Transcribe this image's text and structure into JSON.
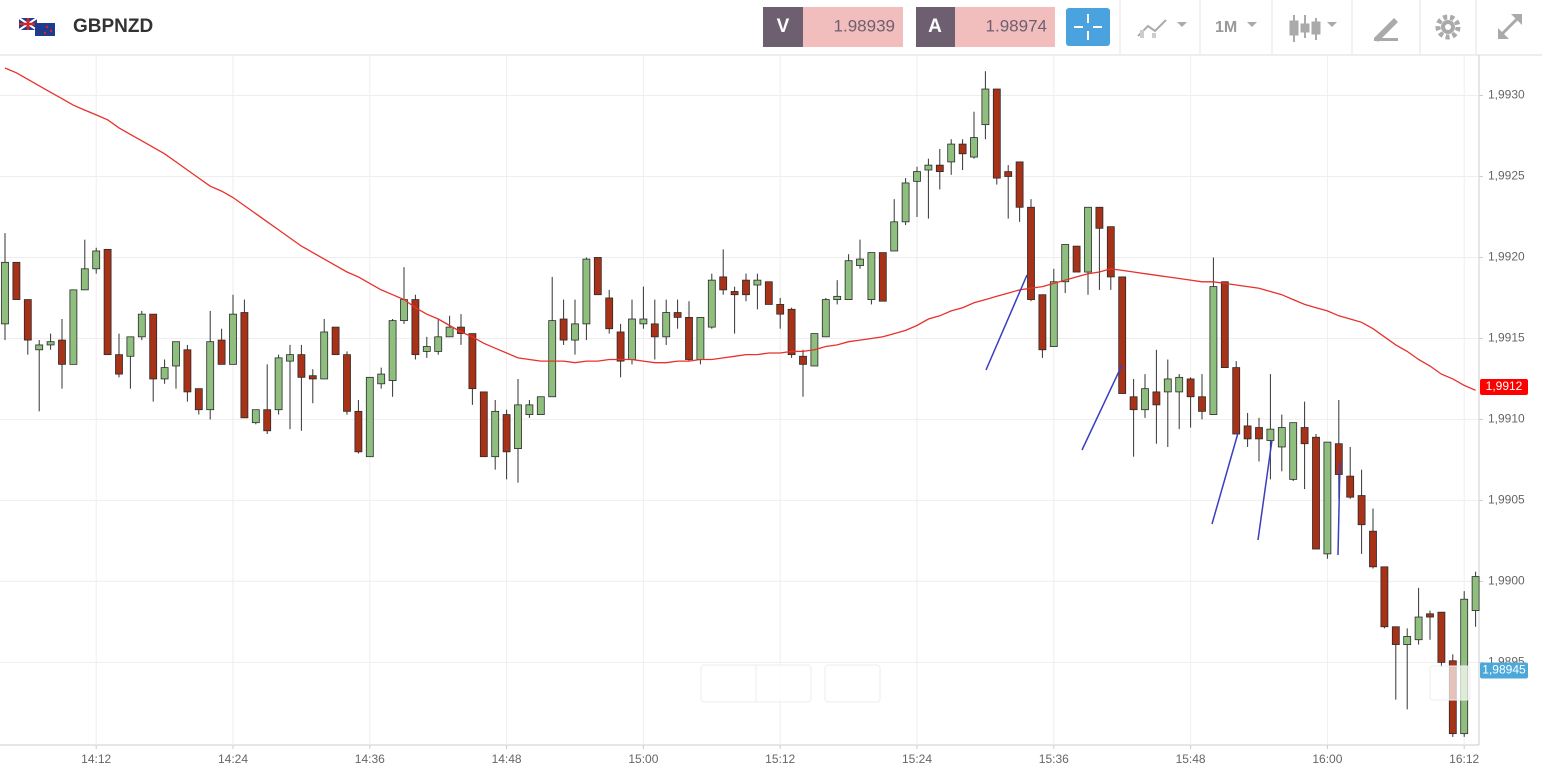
{
  "header": {
    "symbol": "GBPNZD",
    "sell_label": "V",
    "sell_price": "1.98939",
    "buy_label": "A",
    "buy_price": "1.98974",
    "timeframe": "1M"
  },
  "chart_data": {
    "type": "candlestick",
    "categories": [
      null,
      null,
      null,
      null,
      null,
      null,
      null,
      null,
      "14:12",
      null,
      null,
      null,
      null,
      null,
      null,
      null,
      null,
      null,
      null,
      null,
      "14:24",
      null,
      null,
      null,
      null,
      null,
      null,
      null,
      null,
      null,
      null,
      null,
      "14:36",
      null,
      null,
      null,
      null,
      null,
      null,
      null,
      null,
      null,
      null,
      null,
      "14:48",
      null,
      null,
      null,
      null,
      null,
      null,
      null,
      null,
      null,
      null,
      null,
      "15:00",
      null,
      null,
      null,
      null,
      null,
      null,
      null,
      null,
      null,
      null,
      null,
      "15:12",
      null,
      null,
      null,
      null,
      null,
      null,
      null,
      null,
      null,
      null,
      null,
      "15:24",
      null,
      null,
      null,
      null,
      null,
      null,
      null,
      null,
      null,
      null,
      null,
      "15:36",
      null,
      null,
      null,
      null,
      null,
      null,
      null,
      null,
      null,
      null,
      null,
      "15:48",
      null,
      null,
      null,
      null,
      null,
      null,
      null,
      null,
      null,
      null,
      null,
      "16:00",
      null,
      null,
      null,
      null,
      null,
      null,
      null,
      null,
      null,
      null,
      null,
      "16:12",
      null
    ],
    "open": [
      1.99159,
      1.99197,
      1.99174,
      1.99143,
      1.99146,
      1.99149,
      1.99134,
      1.9918,
      1.99193,
      1.99205,
      1.9914,
      1.99139,
      1.99151,
      1.99165,
      1.99125,
      1.99133,
      1.99143,
      1.99119,
      1.99106,
      1.99149,
      1.99134,
      1.99166,
      1.99098,
      1.99106,
      1.99106,
      1.99136,
      1.9914,
      1.99127,
      1.99125,
      1.99157,
      1.9914,
      1.99105,
      1.99077,
      1.99122,
      1.99124,
      1.99161,
      1.99174,
      1.99142,
      1.99142,
      1.99151,
      1.99157,
      1.99153,
      1.99117,
      1.99077,
      1.99103,
      1.99082,
      1.99103,
      1.99103,
      1.99114,
      1.99162,
      1.99149,
      1.99159,
      1.992,
      1.99175,
      1.99154,
      1.99137,
      1.99159,
      1.99159,
      1.99151,
      1.99166,
      1.99163,
      1.99137,
      1.99157,
      1.99188,
      1.99179,
      1.99186,
      1.99183,
      1.99185,
      1.99171,
      1.99168,
      1.99139,
      1.99133,
      1.99151,
      1.99174,
      1.99174,
      1.99195,
      1.99174,
      1.99203,
      1.99204,
      1.99222,
      1.99247,
      1.99254,
      1.99257,
      1.99259,
      1.9927,
      1.99262,
      1.99282,
      1.99304,
      1.99253,
      1.99259,
      1.99231,
      1.99177,
      1.99145,
      1.99185,
      1.99207,
      1.99191,
      1.99231,
      1.99219,
      1.99188,
      1.99114,
      1.99106,
      1.99117,
      1.99117,
      1.99117,
      1.99125,
      1.99114,
      1.99103,
      1.99185,
      1.99132,
      1.99096,
      1.99095,
      1.99087,
      1.99083,
      1.99063,
      1.99095,
      1.99089,
      1.99017,
      1.99085,
      1.99065,
      1.99053,
      1.99031,
      1.99009,
      1.98972,
      1.98961,
      1.98964,
      1.9898,
      1.98981,
      1.98951,
      1.98906,
      1.98982
    ],
    "high": [
      1.99215,
      1.99197,
      1.99174,
      1.99149,
      1.99153,
      1.99162,
      1.9918,
      1.99211,
      1.99206,
      1.99205,
      1.99153,
      1.99151,
      1.99167,
      1.99165,
      1.99137,
      1.99148,
      1.99146,
      1.99119,
      1.99167,
      1.99156,
      1.99177,
      1.99174,
      1.99106,
      1.99134,
      1.9914,
      1.99146,
      1.99146,
      1.99131,
      1.99162,
      1.99157,
      1.99142,
      1.99112,
      1.99126,
      1.99132,
      1.99162,
      1.99194,
      1.99177,
      1.99151,
      1.99162,
      1.99164,
      1.99165,
      1.99153,
      1.99117,
      1.99112,
      1.99106,
      1.99125,
      1.99112,
      1.99114,
      1.99188,
      1.99174,
      1.99174,
      1.992,
      1.992,
      1.9918,
      1.99159,
      1.99174,
      1.99182,
      1.99174,
      1.99174,
      1.99174,
      1.99173,
      1.99163,
      1.9919,
      1.99205,
      1.99182,
      1.9919,
      1.9919,
      1.99185,
      1.99175,
      1.99169,
      1.99143,
      1.99153,
      1.99175,
      1.99186,
      1.99202,
      1.99211,
      1.99203,
      1.99203,
      1.99236,
      1.99249,
      1.99256,
      1.99261,
      1.99267,
      1.99273,
      1.99273,
      1.9929,
      1.99315,
      1.99304,
      1.99257,
      1.99259,
      1.99236,
      1.99177,
      1.99193,
      1.99208,
      1.99207,
      1.99231,
      1.99231,
      1.99219,
      1.99188,
      1.99125,
      1.99128,
      1.99143,
      1.99137,
      1.99128,
      1.99126,
      1.99128,
      1.992,
      1.99185,
      1.99136,
      1.99104,
      1.99101,
      1.99128,
      1.99103,
      1.99098,
      1.99111,
      1.99091,
      1.99086,
      1.99112,
      1.99083,
      1.99069,
      1.99045,
      1.99009,
      1.98972,
      1.98971,
      1.98996,
      1.98982,
      1.98981,
      1.98955,
      1.98994,
      1.99006
    ],
    "low": [
      1.99149,
      1.99174,
      1.9914,
      1.99105,
      1.99143,
      1.99119,
      1.99134,
      1.9918,
      1.9919,
      1.9914,
      1.99126,
      1.99119,
      1.99149,
      1.99111,
      1.99122,
      1.99119,
      1.99111,
      1.99103,
      1.991,
      1.99134,
      1.99134,
      1.99101,
      1.99097,
      1.99091,
      1.99103,
      1.99094,
      1.99093,
      1.9911,
      1.99125,
      1.9914,
      1.99103,
      1.99079,
      1.99077,
      1.99119,
      1.99114,
      1.99159,
      1.99137,
      1.99138,
      1.9914,
      1.99151,
      1.99146,
      1.99109,
      1.99077,
      1.99069,
      1.99063,
      1.99061,
      1.99101,
      1.99103,
      1.99114,
      1.99146,
      1.9914,
      1.99149,
      1.99177,
      1.99153,
      1.99126,
      1.99134,
      1.99156,
      1.99137,
      1.99146,
      1.99156,
      1.99136,
      1.99134,
      1.99156,
      1.99177,
      1.99153,
      1.99173,
      1.99168,
      1.99171,
      1.99156,
      1.99138,
      1.99114,
      1.99133,
      1.99151,
      1.99171,
      1.99174,
      1.99193,
      1.99171,
      1.99173,
      1.99204,
      1.9922,
      1.99225,
      1.99224,
      1.99242,
      1.99251,
      1.99254,
      1.99261,
      1.99273,
      1.99245,
      1.99224,
      1.99222,
      1.99173,
      1.99138,
      1.99145,
      1.99178,
      1.99191,
      1.99177,
      1.9918,
      1.9918,
      1.99116,
      1.99077,
      1.99101,
      1.99085,
      1.99083,
      1.99094,
      1.99095,
      1.991,
      1.99103,
      1.99132,
      1.99091,
      1.99083,
      1.99074,
      1.99063,
      1.99068,
      1.99062,
      1.99057,
      1.9902,
      1.99014,
      1.99051,
      1.99051,
      1.99017,
      1.99008,
      1.98971,
      1.98927,
      1.98921,
      1.98961,
      1.98964,
      1.98947,
      1.98904,
      1.98904,
      1.98972
    ],
    "close": [
      1.99197,
      1.99174,
      1.99149,
      1.99146,
      1.99148,
      1.99134,
      1.9918,
      1.99193,
      1.99204,
      1.9914,
      1.99128,
      1.99151,
      1.99165,
      1.99125,
      1.99132,
      1.99148,
      1.99117,
      1.99106,
      1.99148,
      1.99134,
      1.99165,
      1.99101,
      1.99106,
      1.99093,
      1.99138,
      1.9914,
      1.99126,
      1.99125,
      1.99154,
      1.9914,
      1.99105,
      1.9908,
      1.99126,
      1.99128,
      1.99161,
      1.99174,
      1.9914,
      1.99145,
      1.99151,
      1.99157,
      1.99153,
      1.99119,
      1.99077,
      1.99105,
      1.9908,
      1.99109,
      1.99109,
      1.99114,
      1.99161,
      1.99149,
      1.99159,
      1.99199,
      1.99177,
      1.99156,
      1.99136,
      1.99162,
      1.99162,
      1.99151,
      1.99166,
      1.99163,
      1.99137,
      1.99163,
      1.99186,
      1.9918,
      1.99177,
      1.99177,
      1.99186,
      1.99171,
      1.99165,
      1.9914,
      1.99134,
      1.99153,
      1.99174,
      1.99176,
      1.99198,
      1.99199,
      1.99203,
      1.99173,
      1.99222,
      1.99246,
      1.99253,
      1.99257,
      1.99253,
      1.9927,
      1.99264,
      1.99274,
      1.99304,
      1.99249,
      1.9925,
      1.99231,
      1.99174,
      1.99143,
      1.99185,
      1.99208,
      1.99191,
      1.99231,
      1.99218,
      1.99188,
      1.99116,
      1.99106,
      1.99119,
      1.99109,
      1.99125,
      1.99126,
      1.99114,
      1.99105,
      1.99182,
      1.99132,
      1.99091,
      1.99088,
      1.99088,
      1.99094,
      1.99095,
      1.99098,
      1.99085,
      1.9902,
      1.99086,
      1.99066,
      1.99052,
      1.99035,
      1.99009,
      1.98972,
      1.98961,
      1.98966,
      1.98978,
      1.98978,
      1.9895,
      1.98906,
      1.98989,
      1.99003
    ],
    "up_color": "#8fbf7e",
    "down_color": "#a83218",
    "moving_average": {
      "color": "#e8312a",
      "values": [
        1.99317,
        1.99314,
        1.9931,
        1.99306,
        1.99302,
        1.99298,
        1.99294,
        1.99291,
        1.99288,
        1.99285,
        1.9928,
        1.99276,
        1.99272,
        1.99268,
        1.99264,
        1.99259,
        1.99254,
        1.99249,
        1.99244,
        1.99241,
        1.99237,
        1.99232,
        1.99227,
        1.99222,
        1.99217,
        1.99212,
        1.99207,
        1.99203,
        1.99199,
        1.99195,
        1.99191,
        1.99188,
        1.99184,
        1.9918,
        1.99177,
        1.99174,
        1.99169,
        1.99165,
        1.99162,
        1.99158,
        1.99154,
        1.99151,
        1.99147,
        1.99144,
        1.99141,
        1.99138,
        1.99137,
        1.99136,
        1.99136,
        1.99136,
        1.99135,
        1.99136,
        1.99136,
        1.99137,
        1.99137,
        1.99137,
        1.99136,
        1.99135,
        1.99135,
        1.99136,
        1.99136,
        1.99137,
        1.99137,
        1.99138,
        1.99139,
        1.9914,
        1.9914,
        1.99141,
        1.99141,
        1.99142,
        1.99142,
        1.99143,
        1.99145,
        1.99146,
        1.99148,
        1.99149,
        1.9915,
        1.99151,
        1.99153,
        1.99155,
        1.99158,
        1.99162,
        1.99164,
        1.99167,
        1.99169,
        1.99172,
        1.99174,
        1.99176,
        1.99178,
        1.9918,
        1.99181,
        1.99182,
        1.99184,
        1.99186,
        1.99188,
        1.9919,
        1.99191,
        1.99193,
        1.99192,
        1.99191,
        1.9919,
        1.99189,
        1.99188,
        1.99187,
        1.99186,
        1.99185,
        1.99185,
        1.99184,
        1.99183,
        1.99182,
        1.99181,
        1.99179,
        1.99177,
        1.99174,
        1.99171,
        1.99169,
        1.99167,
        1.99164,
        1.99162,
        1.9916,
        1.99156,
        1.99151,
        1.99146,
        1.99142,
        1.99137,
        1.99133,
        1.99128,
        1.99125,
        1.99121,
        1.99118
      ]
    },
    "price_tags": [
      {
        "value": 1.9912,
        "label": "1,9912",
        "color": "#ff0000"
      },
      {
        "value": 1.98945,
        "label": "1,98945",
        "color": "#4ba8d8"
      }
    ],
    "ylim": [
      1.98899,
      1.99325
    ],
    "yticks": [
      {
        "value": 1.9895,
        "label": "1,9895"
      },
      {
        "value": 1.99,
        "label": "1,9900"
      },
      {
        "value": 1.9905,
        "label": "1,9905"
      },
      {
        "value": 1.991,
        "label": "1,9910"
      },
      {
        "value": 1.9915,
        "label": "1,9915"
      },
      {
        "value": 1.992,
        "label": "1,9920"
      },
      {
        "value": 1.9925,
        "label": "1,9925"
      },
      {
        "value": 1.993,
        "label": "1,9930"
      }
    ],
    "grid": true
  }
}
